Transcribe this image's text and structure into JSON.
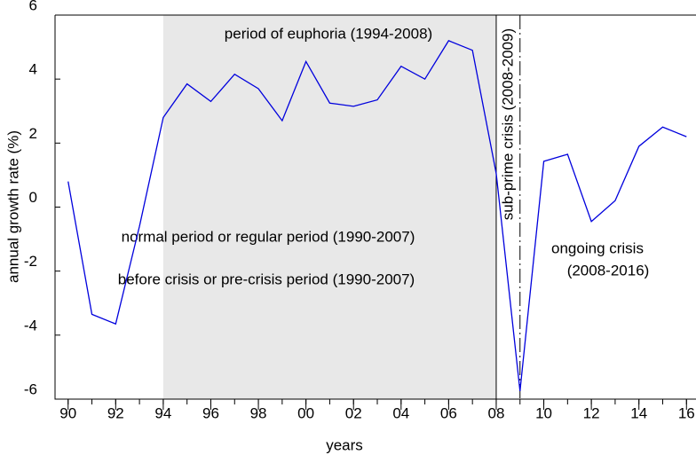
{
  "chart_data": {
    "type": "line",
    "xlabel": "years",
    "ylabel": "annual growth rate (%)",
    "x": [
      1990,
      1991,
      1992,
      1993,
      1994,
      1995,
      1996,
      1997,
      1998,
      1999,
      2000,
      2001,
      2002,
      2003,
      2004,
      2005,
      2006,
      2007,
      2008,
      2009,
      2010,
      2011,
      2012,
      2013,
      2014,
      2015,
      2016
    ],
    "series": [
      {
        "color": "#0000dd",
        "values": [
          0.8,
          -3.35,
          -3.65,
          -0.6,
          2.8,
          3.85,
          3.3,
          4.15,
          3.7,
          2.7,
          4.55,
          3.25,
          3.15,
          3.35,
          4.4,
          4.0,
          5.2,
          4.9,
          1.05,
          -5.75,
          1.43,
          1.65,
          -0.45,
          0.2,
          1.9,
          2.5,
          2.2
        ]
      }
    ],
    "xlim": [
      1989.45,
      2016.4
    ],
    "ylim": [
      -6,
      6
    ],
    "yticks": [
      -6,
      -4,
      -2,
      0,
      2,
      4,
      6
    ],
    "xticks": [
      {
        "value": 1990,
        "label": "90"
      },
      {
        "value": 1992,
        "label": "92"
      },
      {
        "value": 1994,
        "label": "94"
      },
      {
        "value": 1996,
        "label": "96"
      },
      {
        "value": 1998,
        "label": "98"
      },
      {
        "value": 2000,
        "label": "00"
      },
      {
        "value": 2002,
        "label": "02"
      },
      {
        "value": 2004,
        "label": "04"
      },
      {
        "value": 2006,
        "label": "06"
      },
      {
        "value": 2008,
        "label": "08"
      },
      {
        "value": 2010,
        "label": "10"
      },
      {
        "value": 2012,
        "label": "12"
      },
      {
        "value": 2014,
        "label": "14"
      },
      {
        "value": 2016,
        "label": "16"
      }
    ],
    "shaded_region": [
      1994,
      2008
    ],
    "shade_color": "#e8e8e8",
    "vlines": [
      2008,
      2009
    ],
    "annotations": [
      "period of euphoria (1994-2008)",
      "sub-prime crisis (2008-2009)",
      "normal period or regular period (1990-2007)",
      "before crisis or pre-crisis period (1990-2007)",
      "ongoing crisis",
      "(2008-2016)"
    ]
  }
}
